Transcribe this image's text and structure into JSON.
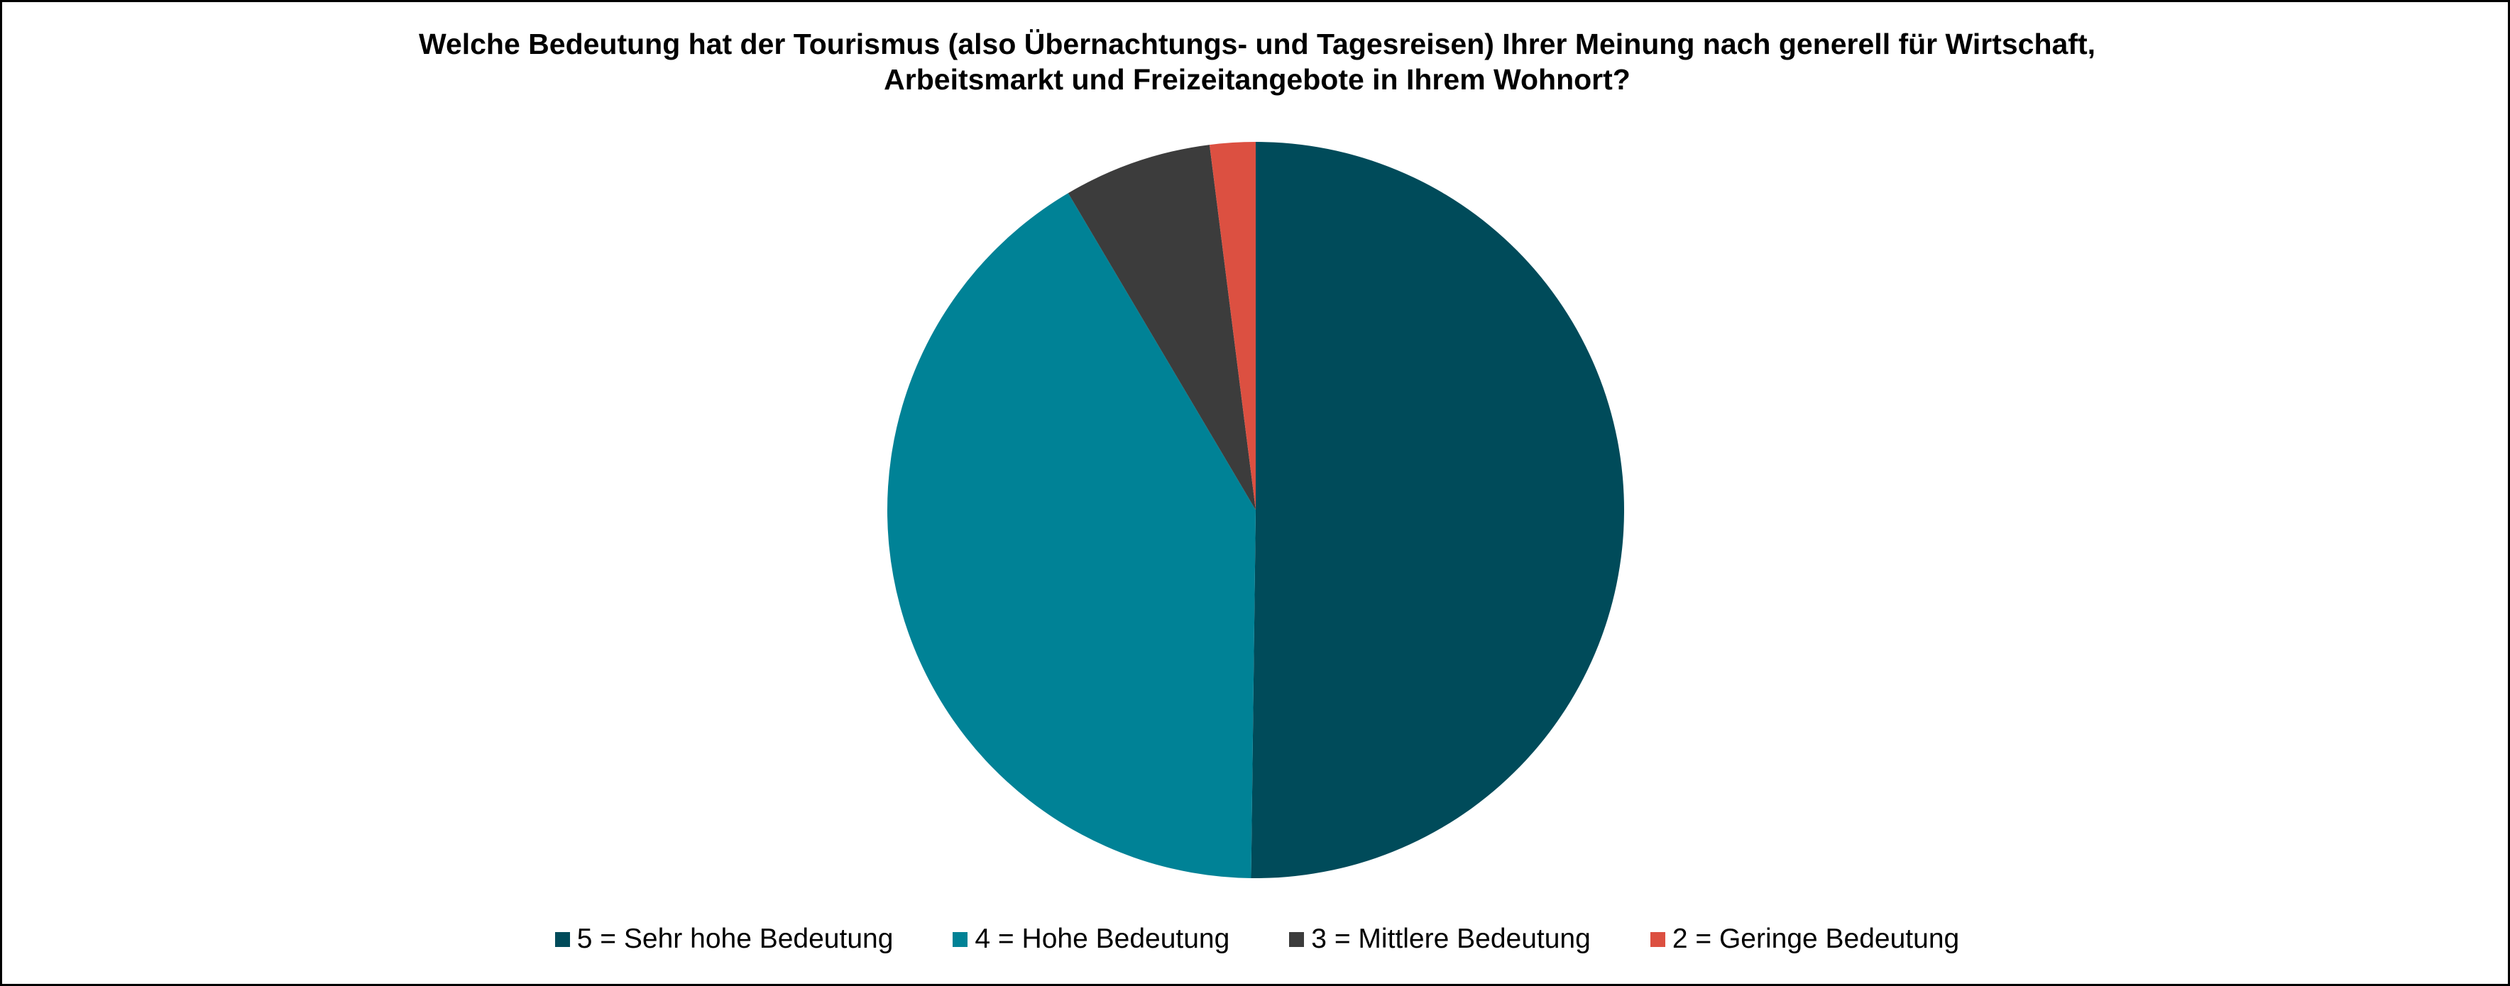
{
  "chart_data": {
    "type": "pie",
    "title_lines": [
      "Welche Bedeutung hat der Tourismus (also Übernachtungs- und Tagesreisen) Ihrer Meinung nach generell für Wirtschaft,",
      "Arbeitsmarkt und Freizeitangebote in Ihrem Wohnort?"
    ],
    "legend_position": "bottom",
    "slices": [
      {
        "name": "5 = Sehr hohe Bedeutung",
        "value": 50.2,
        "color": "#004B5A"
      },
      {
        "name": "4 = Hohe Bedeutung",
        "value": 41.3,
        "color": "#008296"
      },
      {
        "name": "3 = Mittlere Bedeutung",
        "value": 6.5,
        "color": "#3C3C3C"
      },
      {
        "name": "2 = Geringe Bedeutung",
        "value": 2.0,
        "color": "#DC5041"
      }
    ]
  }
}
